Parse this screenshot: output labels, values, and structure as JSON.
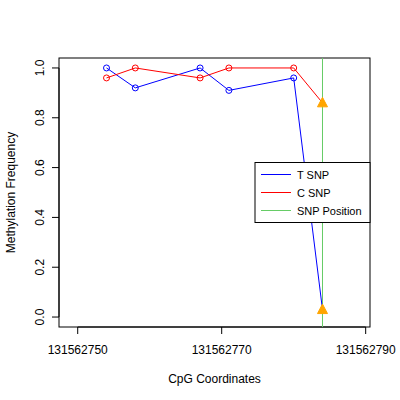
{
  "chart_data": {
    "type": "line",
    "x_label": "CpG Coordinates",
    "y_label": "Methylation Frequency",
    "x": [
      131562754,
      131562758,
      131562767,
      131562771,
      131562780,
      131562784
    ],
    "series": [
      {
        "name": "T SNP",
        "color": "#0000ff",
        "marker": "circle",
        "values": [
          1.0,
          0.92,
          1.0,
          0.91,
          0.96,
          0.03
        ]
      },
      {
        "name": "C SNP",
        "color": "#ff0000",
        "marker": "circle",
        "values": [
          0.96,
          1.0,
          0.96,
          1.0,
          1.0,
          0.86
        ]
      }
    ],
    "snp_position": {
      "name": "SNP Position",
      "color": "#66cc66",
      "x": 131562784
    },
    "snp_marker": {
      "marker": "triangle",
      "color": "#ffa500"
    },
    "xlim": [
      131562747.4,
      131562790.6
    ],
    "ylim": [
      -0.04,
      1.04
    ],
    "xticks": [
      131562750,
      131562770,
      131562790
    ],
    "yticks": [
      {
        "value": 0,
        "label": "0.0"
      },
      {
        "value": 0.2,
        "label": "0.2"
      },
      {
        "value": 0.4,
        "label": "0.4"
      },
      {
        "value": 0.6,
        "label": "0.6"
      },
      {
        "value": 0.8,
        "label": "0.8"
      },
      {
        "value": 1,
        "label": "1.0"
      }
    ],
    "legend": "right"
  }
}
